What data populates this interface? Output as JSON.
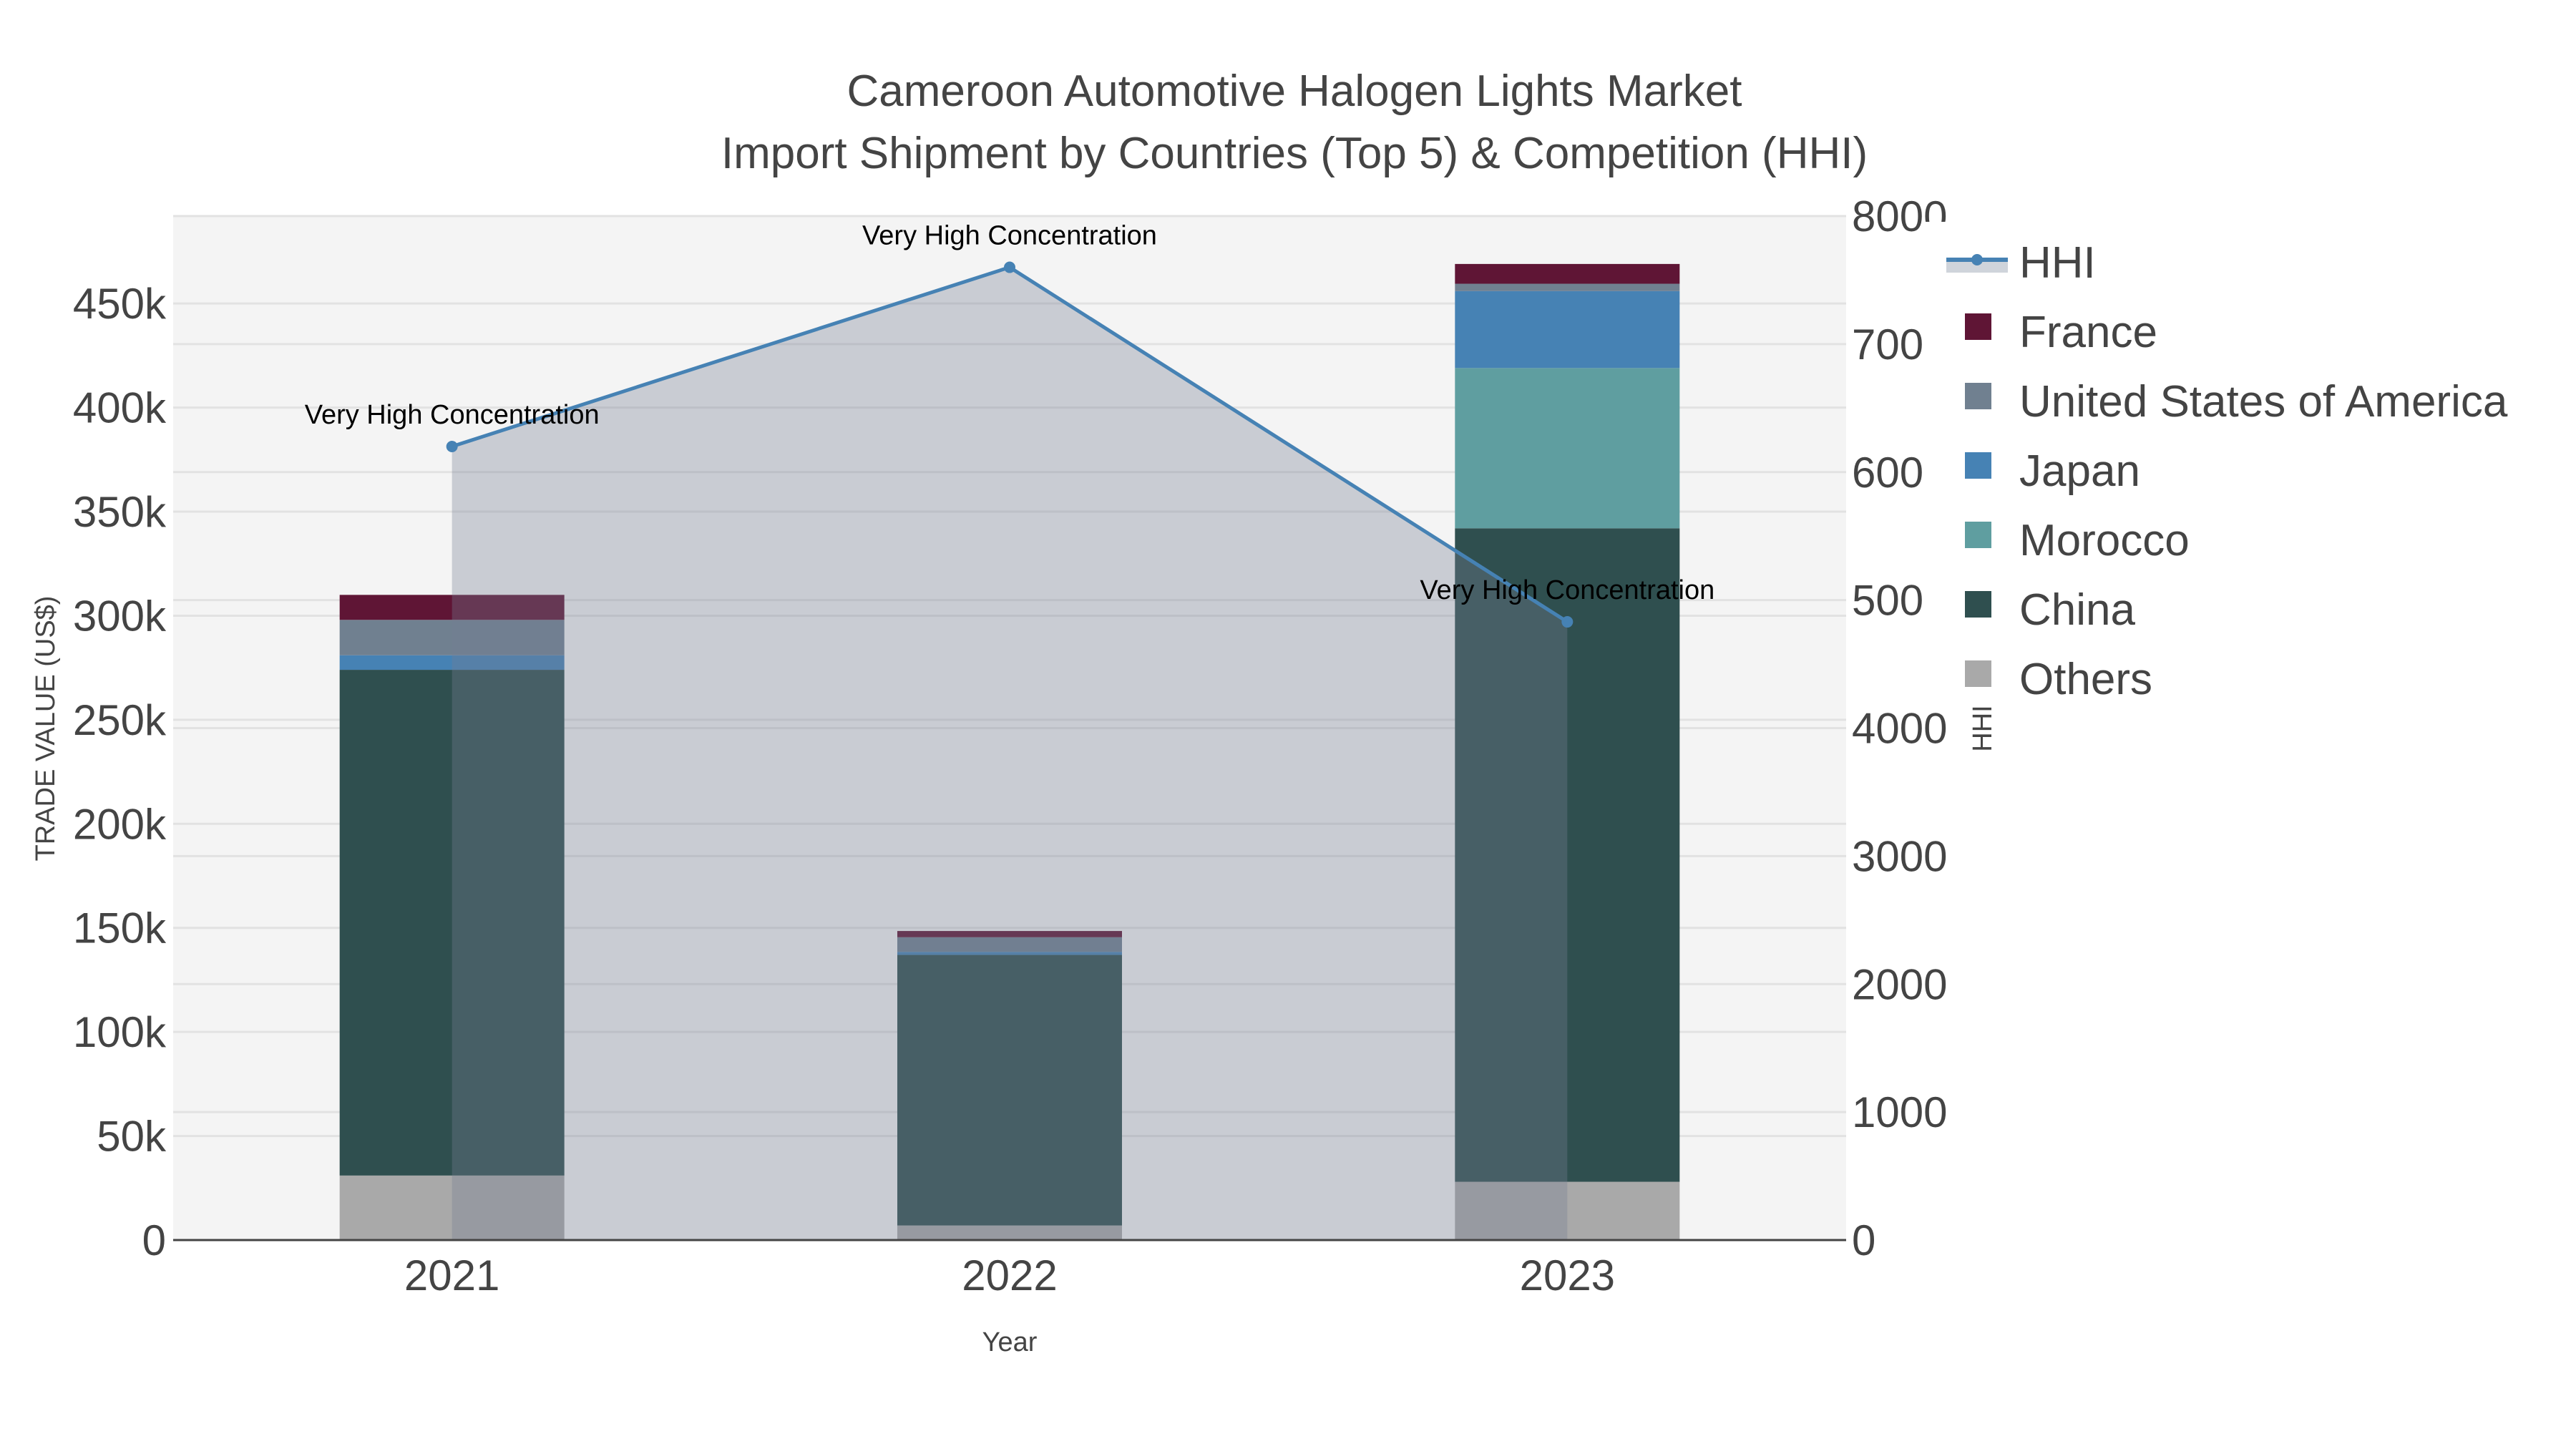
{
  "chart_data": {
    "type": "bar",
    "title": "Cameroon Automotive Halogen Lights Market",
    "subtitle": "Import Shipment by Countries (Top 5) & Competition (HHI)",
    "xlabel": "Year",
    "ylabel": "TRADE VALUE (US$)",
    "y2label": "HHI",
    "categories": [
      "2021",
      "2022",
      "2023"
    ],
    "ylim": [
      0,
      492000
    ],
    "y_ticks": [
      0,
      50000,
      100000,
      150000,
      200000,
      250000,
      300000,
      350000,
      400000,
      450000
    ],
    "y_tick_labels": [
      "0",
      "50k",
      "100k",
      "150k",
      "200k",
      "250k",
      "300k",
      "350k",
      "400k",
      "450k"
    ],
    "y2lim": [
      0,
      8000
    ],
    "y2_ticks": [
      0,
      1000,
      2000,
      3000,
      4000,
      5000,
      6000,
      7000,
      8000
    ],
    "y2_tick_labels": [
      "0",
      "1000",
      "2000",
      "3000",
      "4000",
      "5000",
      "6000",
      "7000",
      "8000"
    ],
    "barmode": "stack",
    "series": [
      {
        "name": "Others",
        "color": "#a9a9a9",
        "values": [
          31000,
          7000,
          28000
        ]
      },
      {
        "name": "China",
        "color": "#2f4f4f",
        "values": [
          243000,
          130000,
          314000
        ]
      },
      {
        "name": "Morocco",
        "color": "#5f9ea0",
        "values": [
          0,
          0,
          77000
        ]
      },
      {
        "name": "Japan",
        "color": "#4682b4",
        "values": [
          7000,
          1500,
          37000
        ]
      },
      {
        "name": "United States of America",
        "color": "#708090",
        "values": [
          17000,
          7000,
          3500
        ]
      },
      {
        "name": "France",
        "color": "#5f1535",
        "values": [
          12000,
          3000,
          9500
        ]
      }
    ],
    "line": {
      "name": "HHI",
      "color": "#4682b4",
      "axis": "y2",
      "values": [
        6200,
        7600,
        4830
      ],
      "annotations": [
        "Very High Concentration",
        "Very High Concentration",
        "Very High Concentration"
      ]
    },
    "legend_order": [
      "HHI",
      "France",
      "United States of America",
      "Japan",
      "Morocco",
      "China",
      "Others"
    ],
    "legend_position": "right",
    "grid": true
  }
}
